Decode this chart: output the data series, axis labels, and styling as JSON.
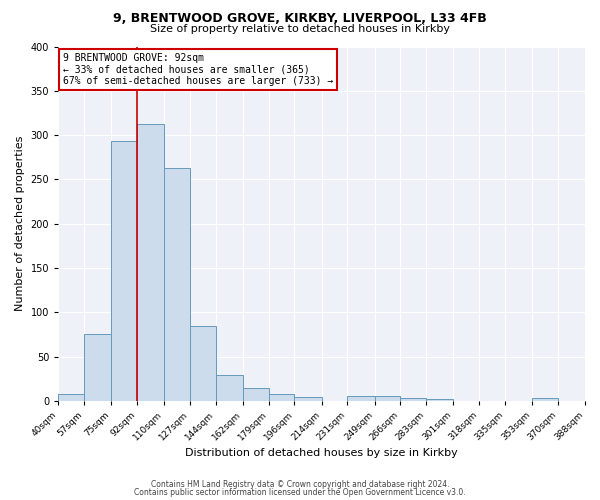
{
  "title1": "9, BRENTWOOD GROVE, KIRKBY, LIVERPOOL, L33 4FB",
  "title2": "Size of property relative to detached houses in Kirkby",
  "xlabel": "Distribution of detached houses by size in Kirkby",
  "ylabel": "Number of detached properties",
  "bin_edges": [
    40,
    57,
    75,
    92,
    110,
    127,
    144,
    162,
    179,
    196,
    214,
    231,
    249,
    266,
    283,
    301,
    318,
    335,
    353,
    370,
    388
  ],
  "bar_heights": [
    8,
    76,
    293,
    313,
    263,
    85,
    29,
    14,
    8,
    4,
    0,
    5,
    5,
    3,
    2,
    0,
    0,
    0,
    3,
    0
  ],
  "bar_color": "#ccdcec",
  "bar_edgecolor": "#6699bb",
  "vline_x": 92,
  "vline_color": "#cc0000",
  "annotation_title": "9 BRENTWOOD GROVE: 92sqm",
  "annotation_line1": "← 33% of detached houses are smaller (365)",
  "annotation_line2": "67% of semi-detached houses are larger (733) →",
  "annotation_box_edgecolor": "#cc0000",
  "ylim": [
    0,
    400
  ],
  "yticks": [
    0,
    50,
    100,
    150,
    200,
    250,
    300,
    350,
    400
  ],
  "footer1": "Contains HM Land Registry data © Crown copyright and database right 2024.",
  "footer2": "Contains public sector information licensed under the Open Government Licence v3.0.",
  "background_color": "#ffffff",
  "plot_bg_color": "#eef2f8",
  "grid_color": "#ffffff",
  "title1_fontsize": 9,
  "title2_fontsize": 8,
  "xlabel_fontsize": 8,
  "ylabel_fontsize": 8,
  "tick_fontsize": 6.5,
  "annotation_fontsize": 7,
  "footer_fontsize": 5.5
}
